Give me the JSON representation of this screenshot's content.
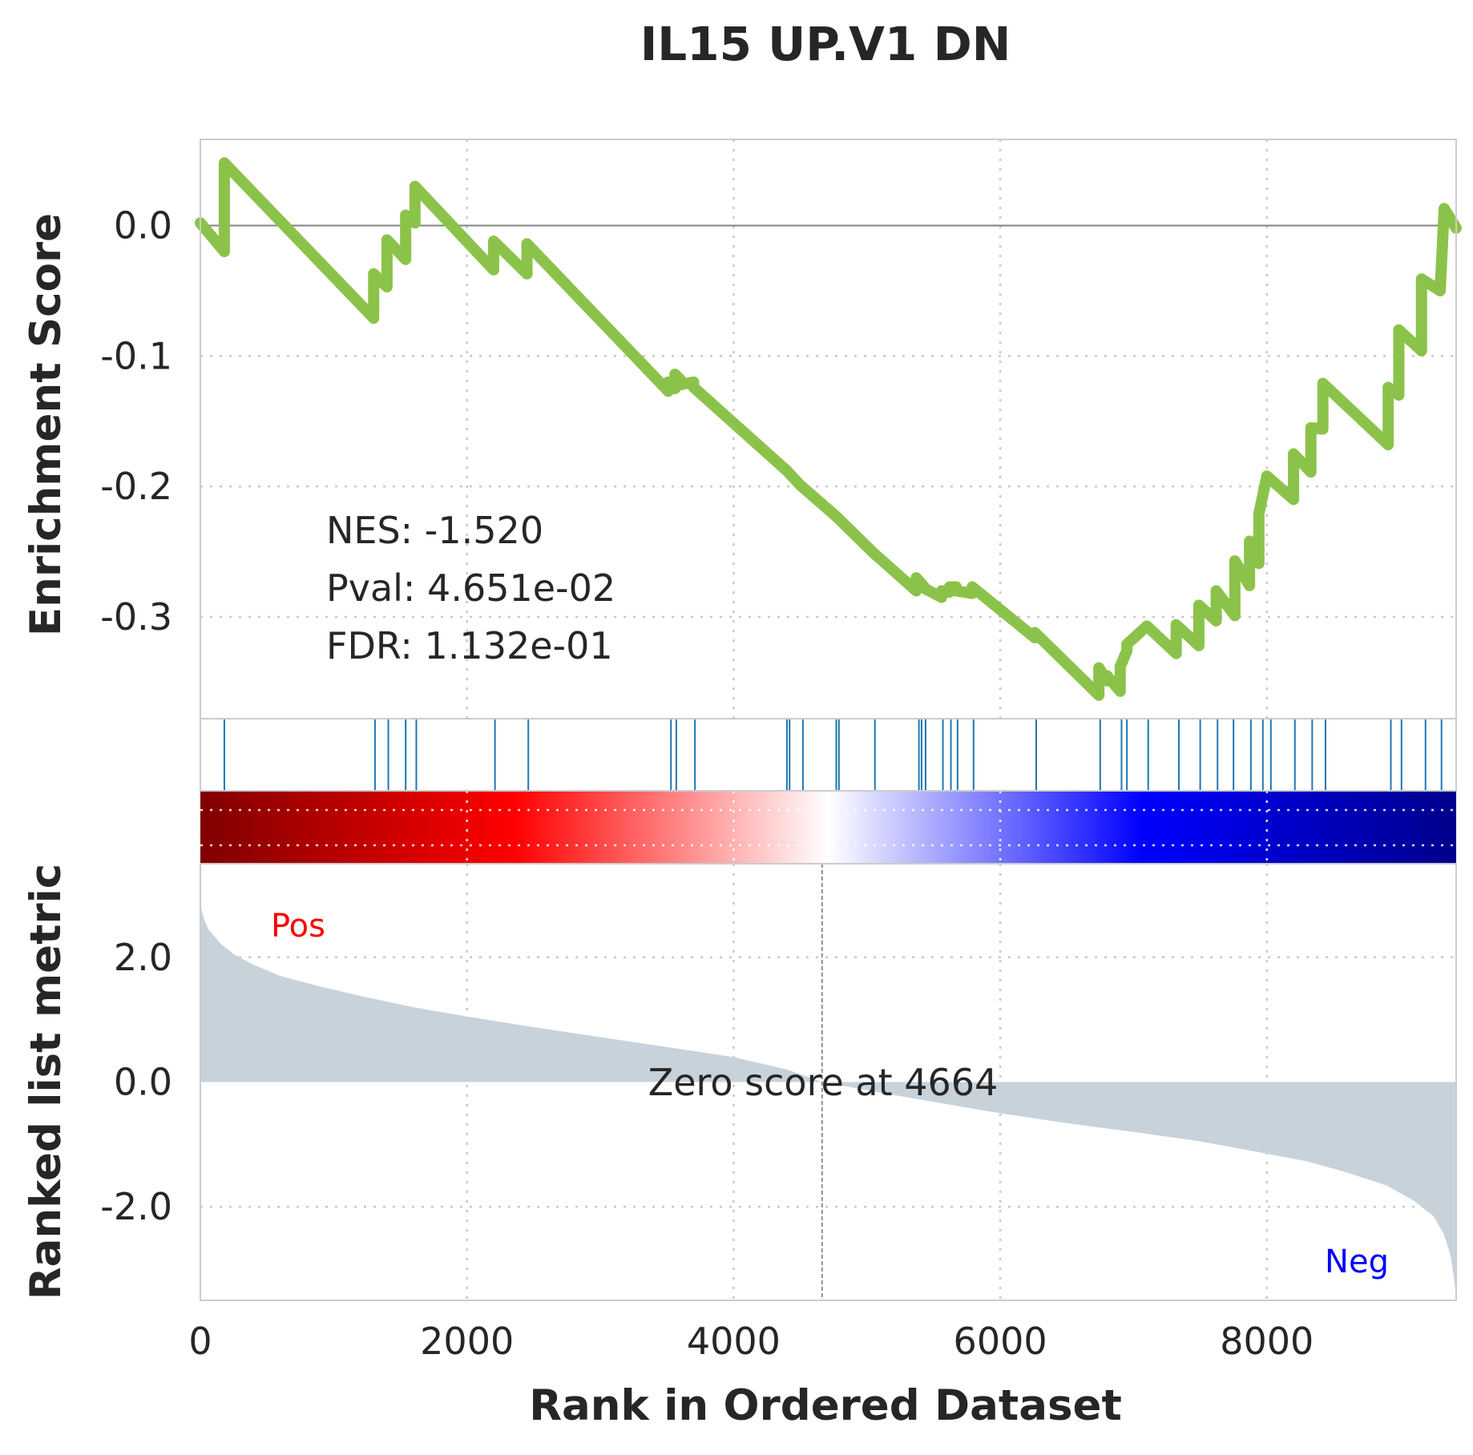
{
  "chart_data": {
    "type": "line",
    "title": "IL15 UP.V1 DN",
    "xlabel": "Rank in Ordered Dataset",
    "xlim": [
      0,
      9420
    ],
    "x_ticks": [
      {
        "value": 0,
        "label": "0"
      },
      {
        "value": 2000,
        "label": "2000"
      },
      {
        "value": 4000,
        "label": "4000"
      },
      {
        "value": 6000,
        "label": "6000"
      },
      {
        "value": 8000,
        "label": "8000"
      }
    ],
    "grid": true,
    "panels": {
      "enrichment": {
        "ylabel": "Enrichment Score",
        "ylim": [
          -0.378,
          0.066
        ],
        "y_ticks": [
          {
            "value": 0.0,
            "label": "0.0"
          },
          {
            "value": -0.1,
            "label": "-0.1"
          },
          {
            "value": -0.2,
            "label": "-0.2"
          },
          {
            "value": -0.3,
            "label": "-0.3"
          }
        ],
        "line_color": "#8bc34a",
        "series": {
          "x": [
            0,
            180,
            180,
            1300,
            1300,
            1400,
            1400,
            1540,
            1540,
            1610,
            1610,
            2200,
            2200,
            2450,
            2450,
            3510,
            3510,
            3560,
            3560,
            3600,
            3600,
            3700,
            3700,
            4400,
            4400,
            4500,
            4500,
            4770,
            4770,
            5050,
            5050,
            5370,
            5370,
            5430,
            5430,
            5560,
            5560,
            5620,
            5620,
            5670,
            5670,
            5790,
            5790,
            6260,
            6260,
            6740,
            6740,
            6800,
            6800,
            6900,
            6900,
            6950,
            6950,
            7100,
            7100,
            7320,
            7320,
            7490,
            7490,
            7620,
            7620,
            7760,
            7760,
            7870,
            7870,
            7940,
            7940,
            8000,
            8000,
            8200,
            8200,
            8330,
            8330,
            8420,
            8420,
            8910,
            8910,
            8990,
            8990,
            9160,
            9160,
            9300,
            9300,
            9330,
            9330,
            9420
          ],
          "y": [
            0.002,
            -0.02,
            0.048,
            -0.071,
            -0.037,
            -0.047,
            -0.011,
            -0.026,
            0.008,
            0.002,
            0.03,
            -0.034,
            -0.012,
            -0.037,
            -0.014,
            -0.127,
            -0.12,
            -0.125,
            -0.114,
            -0.118,
            -0.122,
            -0.12,
            -0.124,
            -0.188,
            -0.188,
            -0.199,
            -0.199,
            -0.223,
            -0.223,
            -0.251,
            -0.251,
            -0.28,
            -0.27,
            -0.277,
            -0.278,
            -0.285,
            -0.28,
            -0.281,
            -0.277,
            -0.277,
            -0.28,
            -0.282,
            -0.277,
            -0.316,
            -0.312,
            -0.36,
            -0.339,
            -0.349,
            -0.345,
            -0.357,
            -0.338,
            -0.326,
            -0.321,
            -0.307,
            -0.307,
            -0.328,
            -0.306,
            -0.322,
            -0.291,
            -0.303,
            -0.28,
            -0.299,
            -0.257,
            -0.276,
            -0.242,
            -0.259,
            -0.221,
            -0.192,
            -0.192,
            -0.21,
            -0.175,
            -0.189,
            -0.155,
            -0.156,
            -0.121,
            -0.168,
            -0.124,
            -0.13,
            -0.08,
            -0.096,
            -0.041,
            -0.05,
            -0.05,
            0.013,
            0.013,
            -0.002
          ]
        }
      },
      "hits": {
        "line_color": "#1f77b4",
        "positions": [
          180,
          1310,
          1410,
          1540,
          1620,
          2210,
          2460,
          3530,
          3570,
          3710,
          4400,
          4420,
          4520,
          4770,
          4790,
          5060,
          5390,
          5410,
          5440,
          5570,
          5630,
          5680,
          5800,
          6270,
          6750,
          6910,
          6950,
          7110,
          7340,
          7500,
          7630,
          7750,
          7880,
          7970,
          8030,
          8210,
          8340,
          8440,
          8930,
          9010,
          9190,
          9310
        ]
      },
      "color_bar": {
        "colors": [
          "#800000",
          "#ff0000",
          "#ffffff",
          "#0000ff",
          "#00008b"
        ]
      },
      "ranked_metric": {
        "ylabel": "Ranked list metric",
        "ylim": [
          -3.5,
          3.5
        ],
        "y_ticks": [
          {
            "value": 2.0,
            "label": "2.0"
          },
          {
            "value": 0.0,
            "label": "0.0"
          },
          {
            "value": -2.0,
            "label": "-2.0"
          }
        ],
        "fill_color": "#c8d2db",
        "series": {
          "x": [
            0,
            10,
            30,
            60,
            100,
            150,
            250,
            400,
            600,
            900,
            1200,
            1600,
            2000,
            2500,
            3000,
            3500,
            4000,
            4400,
            4664,
            5000,
            5500,
            6000,
            6500,
            7000,
            7500,
            8000,
            8300,
            8600,
            8900,
            9100,
            9250,
            9330,
            9380,
            9400,
            9420
          ],
          "y": [
            2.9,
            2.75,
            2.6,
            2.45,
            2.35,
            2.22,
            2.05,
            1.88,
            1.7,
            1.53,
            1.38,
            1.2,
            1.05,
            0.88,
            0.72,
            0.56,
            0.4,
            0.2,
            0.0,
            -0.13,
            -0.32,
            -0.5,
            -0.66,
            -0.8,
            -0.95,
            -1.15,
            -1.27,
            -1.45,
            -1.66,
            -1.9,
            -2.15,
            -2.45,
            -2.8,
            -3.1,
            -3.4
          ]
        },
        "zero_rank": 4664
      }
    },
    "annotations": {
      "nes": "NES: -1.520",
      "pval": "Pval: 4.651e-02",
      "fdr": "FDR: 1.132e-01",
      "zero_score": "Zero score at 4664",
      "pos": "Pos",
      "neg": "Neg",
      "pos_color": "#ff0000",
      "neg_color": "#0000ff"
    }
  }
}
